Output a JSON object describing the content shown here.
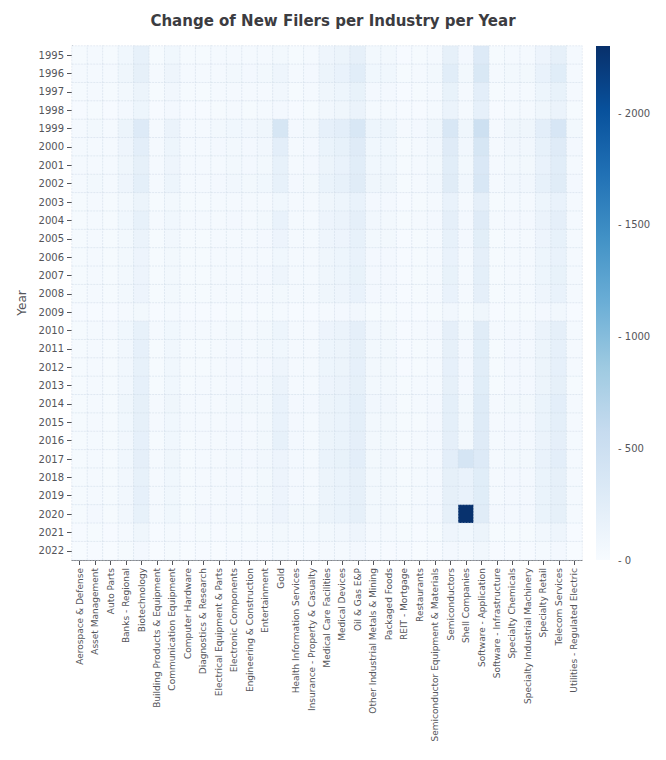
{
  "chart_data": {
    "type": "heatmap",
    "title": "Change of New Filers per Industry per Year",
    "ylabel": "Year",
    "x": [
      "Aerospace & Defense",
      "Asset Management",
      "Auto Parts",
      "Banks - Regional",
      "Biotechnology",
      "Building Products & Equipment",
      "Communication Equipment",
      "Computer Hardware",
      "Diagnostics & Research",
      "Electrical Equipment & Parts",
      "Electronic Components",
      "Engineering & Construction",
      "Entertainment",
      "Gold",
      "Health Information Services",
      "Insurance - Property & Casualty",
      "Medical Care Facilities",
      "Medical Devices",
      "Oil & Gas E&P",
      "Other Industrial Metals & Mining",
      "Packaged Foods",
      "REIT - Mortgage",
      "Restaurants",
      "Semiconductor Equipment & Materials",
      "Semiconductors",
      "Shell Companies",
      "Software - Application",
      "Software - Infrastructure",
      "Specialty Chemicals",
      "Specialty Industrial Machinery",
      "Specialty Retail",
      "Telecom Services",
      "Utilities - Regulated Electric"
    ],
    "y": [
      "1995",
      "1996",
      "1997",
      "1998",
      "1999",
      "2000",
      "2001",
      "2002",
      "2003",
      "2004",
      "2005",
      "2006",
      "2007",
      "2008",
      "2009",
      "2010",
      "2011",
      "2012",
      "2013",
      "2014",
      "2015",
      "2016",
      "2017",
      "2018",
      "2019",
      "2020",
      "2021",
      "2022"
    ],
    "values": [
      [
        20,
        30,
        20,
        80,
        180,
        20,
        80,
        20,
        20,
        30,
        40,
        30,
        40,
        60,
        20,
        30,
        100,
        130,
        200,
        60,
        60,
        10,
        20,
        40,
        200,
        50,
        300,
        20,
        40,
        40,
        120,
        200,
        30
      ],
      [
        30,
        40,
        30,
        90,
        200,
        30,
        100,
        30,
        30,
        40,
        60,
        50,
        60,
        100,
        30,
        50,
        130,
        160,
        250,
        80,
        80,
        20,
        30,
        60,
        250,
        60,
        350,
        30,
        60,
        60,
        160,
        260,
        40
      ],
      [
        20,
        30,
        20,
        60,
        130,
        20,
        70,
        20,
        20,
        30,
        40,
        30,
        40,
        70,
        20,
        30,
        90,
        110,
        170,
        50,
        50,
        10,
        20,
        40,
        170,
        40,
        230,
        20,
        40,
        40,
        110,
        170,
        30
      ],
      [
        10,
        20,
        10,
        50,
        110,
        10,
        50,
        10,
        10,
        20,
        30,
        20,
        30,
        50,
        10,
        20,
        70,
        90,
        140,
        40,
        40,
        10,
        10,
        30,
        140,
        30,
        190,
        10,
        30,
        30,
        90,
        140,
        20
      ],
      [
        40,
        60,
        40,
        130,
        300,
        40,
        140,
        40,
        40,
        60,
        80,
        70,
        90,
        380,
        50,
        70,
        190,
        230,
        360,
        110,
        110,
        30,
        50,
        90,
        360,
        90,
        490,
        40,
        90,
        90,
        230,
        370,
        60
      ],
      [
        30,
        40,
        30,
        100,
        230,
        30,
        110,
        30,
        30,
        50,
        60,
        50,
        70,
        230,
        40,
        50,
        150,
        180,
        280,
        80,
        80,
        20,
        40,
        70,
        280,
        70,
        380,
        30,
        70,
        70,
        180,
        280,
        50
      ],
      [
        30,
        40,
        30,
        90,
        200,
        30,
        100,
        30,
        30,
        40,
        60,
        50,
        60,
        180,
        40,
        50,
        130,
        160,
        250,
        80,
        80,
        20,
        30,
        60,
        250,
        60,
        340,
        30,
        60,
        60,
        160,
        250,
        40
      ],
      [
        40,
        60,
        30,
        100,
        220,
        30,
        110,
        30,
        40,
        50,
        70,
        60,
        80,
        180,
        50,
        60,
        150,
        180,
        270,
        90,
        90,
        20,
        40,
        70,
        270,
        70,
        360,
        40,
        70,
        70,
        180,
        270,
        50
      ],
      [
        20,
        30,
        20,
        60,
        130,
        20,
        60,
        20,
        20,
        30,
        40,
        30,
        40,
        80,
        30,
        30,
        90,
        110,
        160,
        50,
        50,
        10,
        20,
        40,
        160,
        40,
        210,
        20,
        40,
        40,
        110,
        160,
        30
      ],
      [
        20,
        40,
        20,
        80,
        180,
        30,
        80,
        30,
        30,
        40,
        50,
        40,
        60,
        160,
        40,
        40,
        120,
        140,
        210,
        70,
        60,
        20,
        30,
        50,
        210,
        50,
        280,
        30,
        50,
        50,
        140,
        210,
        40
      ],
      [
        20,
        30,
        20,
        60,
        140,
        20,
        70,
        20,
        20,
        30,
        40,
        30,
        50,
        120,
        30,
        30,
        100,
        120,
        180,
        60,
        60,
        10,
        20,
        40,
        180,
        50,
        240,
        20,
        40,
        40,
        120,
        180,
        30
      ],
      [
        20,
        30,
        20,
        60,
        120,
        20,
        60,
        20,
        20,
        30,
        40,
        30,
        40,
        80,
        30,
        30,
        90,
        110,
        160,
        50,
        50,
        10,
        20,
        40,
        160,
        40,
        210,
        20,
        40,
        40,
        110,
        160,
        30
      ],
      [
        20,
        30,
        20,
        60,
        120,
        20,
        60,
        20,
        20,
        30,
        40,
        30,
        50,
        100,
        30,
        30,
        90,
        110,
        170,
        50,
        50,
        10,
        20,
        40,
        170,
        40,
        220,
        20,
        40,
        40,
        110,
        170,
        30
      ],
      [
        20,
        30,
        20,
        60,
        120,
        20,
        60,
        20,
        20,
        30,
        40,
        30,
        40,
        60,
        30,
        30,
        90,
        100,
        160,
        50,
        50,
        10,
        20,
        40,
        160,
        40,
        210,
        20,
        40,
        40,
        100,
        160,
        30
      ],
      [
        10,
        10,
        10,
        30,
        60,
        10,
        30,
        10,
        10,
        10,
        20,
        10,
        20,
        30,
        10,
        10,
        40,
        50,
        70,
        20,
        20,
        10,
        10,
        20,
        70,
        20,
        90,
        10,
        20,
        20,
        50,
        70,
        10
      ],
      [
        20,
        30,
        30,
        80,
        180,
        30,
        80,
        30,
        30,
        40,
        60,
        40,
        60,
        110,
        40,
        40,
        120,
        140,
        210,
        70,
        60,
        10,
        30,
        50,
        210,
        60,
        270,
        30,
        50,
        50,
        140,
        210,
        40
      ],
      [
        20,
        40,
        20,
        70,
        190,
        20,
        80,
        20,
        20,
        30,
        50,
        40,
        60,
        80,
        40,
        30,
        110,
        130,
        200,
        60,
        60,
        10,
        20,
        40,
        200,
        50,
        260,
        20,
        50,
        50,
        130,
        190,
        30
      ],
      [
        20,
        30,
        20,
        70,
        180,
        20,
        80,
        20,
        20,
        30,
        50,
        40,
        50,
        100,
        40,
        30,
        110,
        130,
        190,
        60,
        60,
        10,
        20,
        40,
        190,
        50,
        250,
        20,
        50,
        50,
        130,
        190,
        30
      ],
      [
        20,
        30,
        20,
        70,
        190,
        20,
        80,
        20,
        30,
        30,
        50,
        50,
        60,
        140,
        40,
        40,
        120,
        140,
        200,
        60,
        60,
        20,
        30,
        40,
        200,
        50,
        260,
        20,
        50,
        50,
        130,
        200,
        20
      ],
      [
        20,
        40,
        20,
        90,
        200,
        30,
        90,
        30,
        30,
        40,
        60,
        60,
        60,
        160,
        50,
        50,
        130,
        150,
        220,
        70,
        70,
        20,
        30,
        50,
        220,
        60,
        290,
        30,
        60,
        60,
        150,
        230,
        40
      ],
      [
        20,
        40,
        20,
        80,
        200,
        30,
        80,
        30,
        30,
        40,
        50,
        40,
        60,
        160,
        50,
        40,
        130,
        150,
        220,
        60,
        60,
        20,
        20,
        50,
        220,
        60,
        290,
        30,
        50,
        50,
        150,
        220,
        30
      ],
      [
        20,
        40,
        20,
        70,
        190,
        20,
        80,
        20,
        30,
        30,
        50,
        40,
        60,
        180,
        50,
        40,
        130,
        150,
        210,
        60,
        60,
        20,
        30,
        50,
        210,
        60,
        280,
        30,
        50,
        50,
        140,
        210,
        30
      ],
      [
        20,
        40,
        20,
        80,
        210,
        30,
        90,
        20,
        30,
        40,
        60,
        50,
        70,
        120,
        50,
        40,
        150,
        170,
        230,
        60,
        70,
        20,
        30,
        50,
        230,
        400,
        300,
        30,
        60,
        60,
        160,
        230,
        40
      ],
      [
        20,
        30,
        20,
        70,
        180,
        30,
        80,
        20,
        30,
        30,
        50,
        40,
        60,
        120,
        50,
        40,
        130,
        150,
        200,
        60,
        60,
        20,
        30,
        50,
        200,
        160,
        260,
        30,
        50,
        50,
        150,
        200,
        40
      ],
      [
        20,
        40,
        20,
        70,
        190,
        30,
        80,
        20,
        30,
        30,
        50,
        40,
        60,
        120,
        50,
        40,
        130,
        150,
        200,
        60,
        60,
        20,
        30,
        50,
        200,
        160,
        260,
        30,
        50,
        50,
        150,
        200,
        40
      ],
      [
        20,
        50,
        20,
        70,
        180,
        30,
        80,
        20,
        50,
        30,
        50,
        40,
        70,
        120,
        60,
        60,
        130,
        150,
        200,
        60,
        60,
        20,
        30,
        50,
        200,
        2280,
        270,
        50,
        50,
        50,
        150,
        200,
        40
      ],
      [
        10,
        20,
        10,
        30,
        90,
        10,
        40,
        10,
        20,
        10,
        20,
        20,
        30,
        60,
        30,
        30,
        60,
        70,
        100,
        30,
        30,
        20,
        10,
        20,
        100,
        80,
        130,
        20,
        20,
        20,
        70,
        100,
        10
      ],
      [
        5,
        10,
        5,
        20,
        50,
        5,
        20,
        5,
        10,
        5,
        10,
        10,
        15,
        30,
        15,
        10,
        30,
        35,
        50,
        15,
        15,
        10,
        5,
        10,
        50,
        30,
        65,
        10,
        10,
        10,
        35,
        50,
        5
      ]
    ],
    "color": [
      "#f7fbff",
      "#deebf7",
      "#c6dbef",
      "#9ecae1",
      "#6baed6",
      "#4292c6",
      "#2171b5",
      "#08519c",
      "#08306b"
    ],
    "colorbar_range": [
      0,
      2300
    ],
    "colorbar_ticks": [
      {
        "value": 0,
        "label": "- 0"
      },
      {
        "value": 500,
        "label": "- 500"
      },
      {
        "value": 1000,
        "label": "- 1000"
      },
      {
        "value": 1500,
        "label": "- 1500"
      },
      {
        "value": 2000,
        "label": "- 2000"
      }
    ],
    "grid": true
  }
}
